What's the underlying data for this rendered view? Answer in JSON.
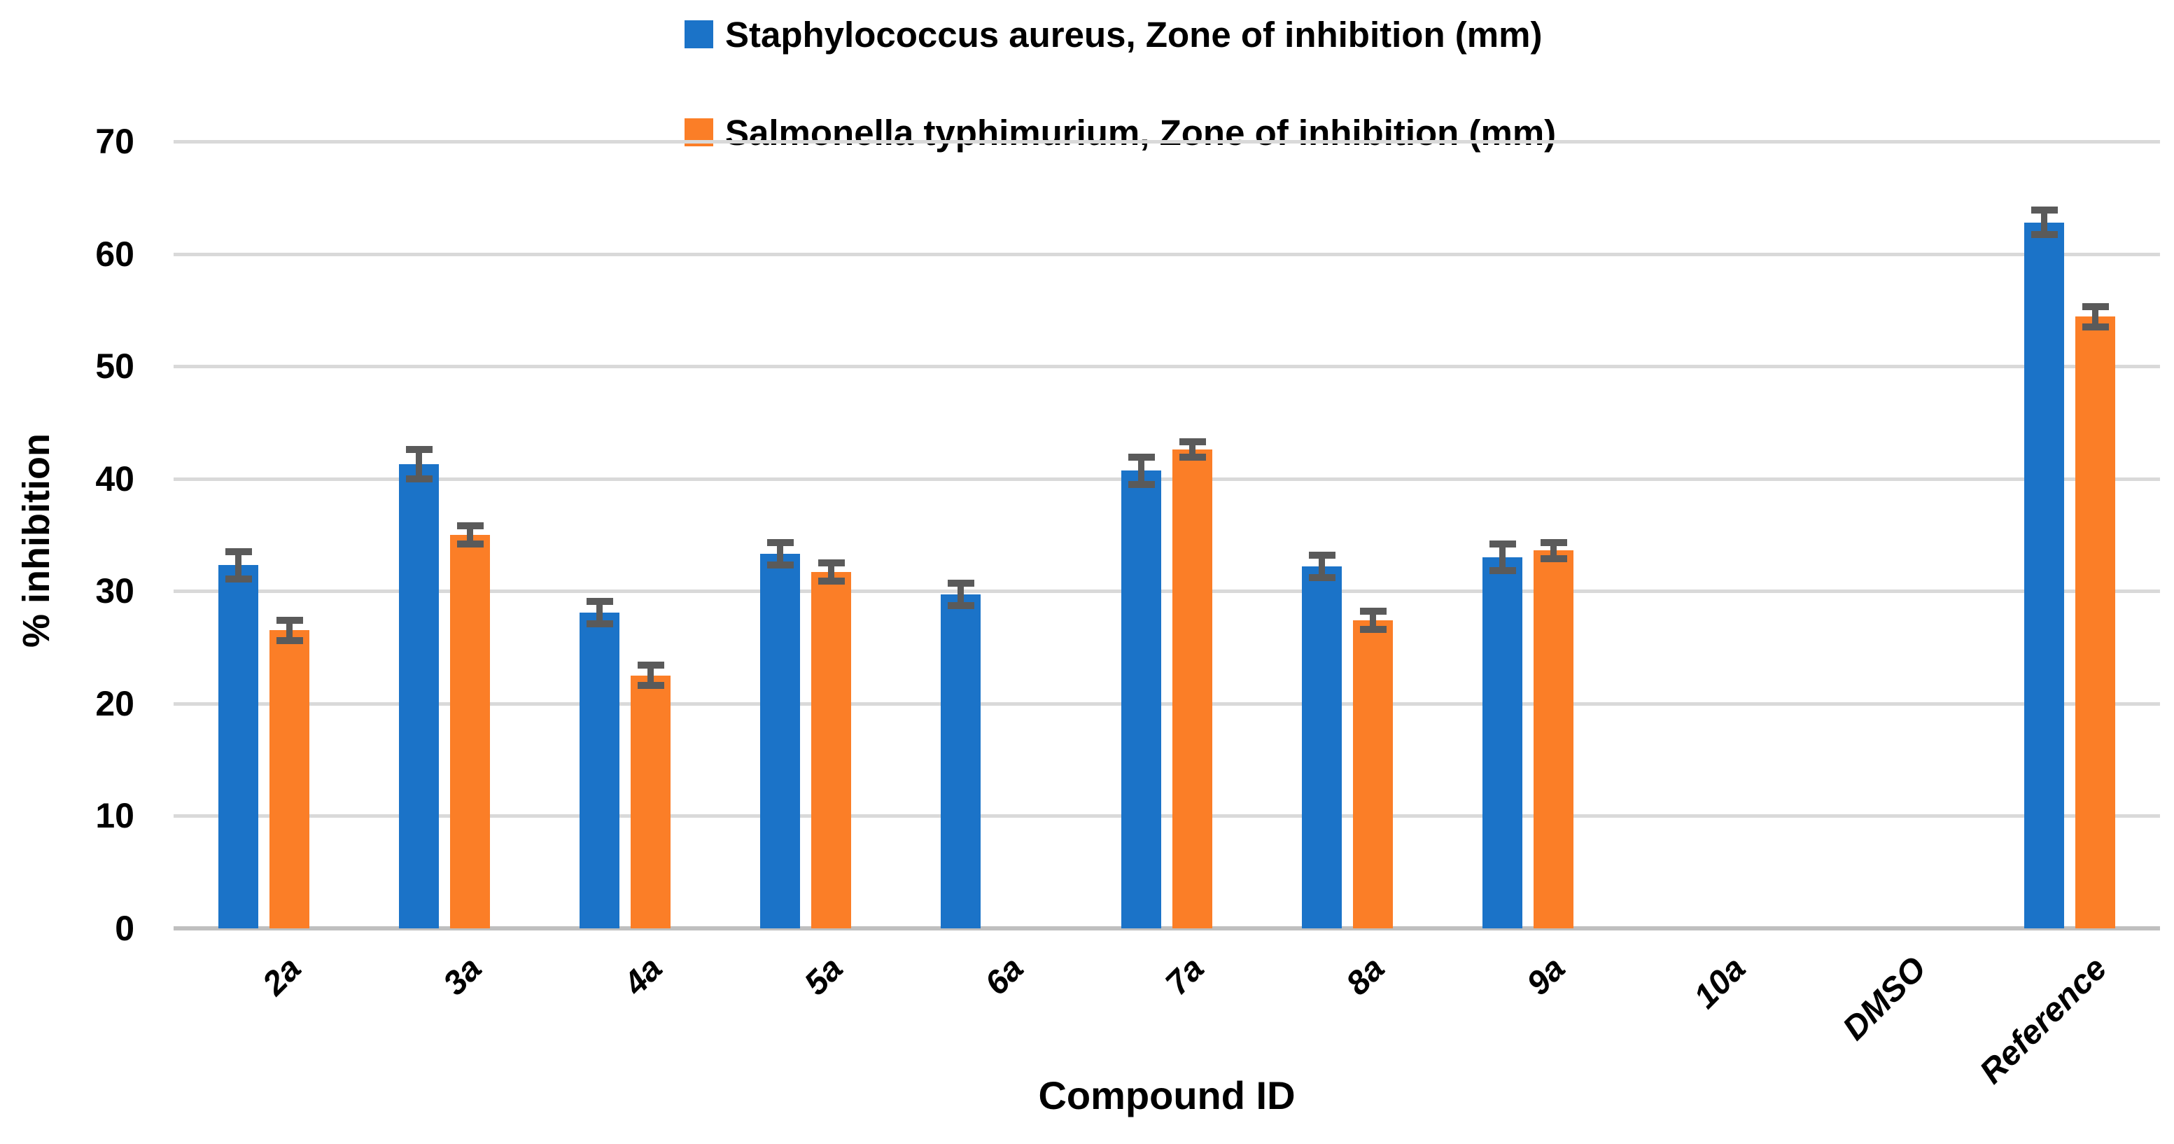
{
  "chart_data": {
    "type": "bar",
    "title": "",
    "xlabel": "Compound ID",
    "ylabel": "% inhibition",
    "ylim": [
      0,
      70
    ],
    "yticks": [
      0,
      10,
      20,
      30,
      40,
      50,
      60,
      70
    ],
    "grid": true,
    "legend_position": "top-center",
    "categories": [
      "2a",
      "3a",
      "4a",
      "5a",
      "6a",
      "7a",
      "8a",
      "9a",
      "10a",
      "DMSO",
      "Reference"
    ],
    "series": [
      {
        "name": "Staphylococcus aureus, Zone of inhibition (mm)",
        "color": "#1B73C8",
        "values": [
          32.3,
          41.3,
          28.1,
          33.3,
          29.7,
          40.7,
          32.2,
          33.0,
          null,
          null,
          62.8
        ],
        "errors": [
          1.2,
          1.3,
          1.0,
          1.0,
          1.0,
          1.2,
          1.0,
          1.2,
          null,
          null,
          1.1
        ]
      },
      {
        "name": "Salmonella typhimurium, Zone of inhibition (mm)",
        "color": "#FB7E27",
        "values": [
          26.5,
          35.0,
          22.5,
          31.7,
          null,
          42.6,
          27.4,
          33.6,
          null,
          null,
          54.4
        ],
        "errors": [
          0.9,
          0.8,
          0.9,
          0.8,
          null,
          0.7,
          0.8,
          0.7,
          null,
          null,
          0.9
        ]
      }
    ],
    "error_bar_color": "#5A5A5A",
    "gridline_color": "#D9D9D9",
    "axis_line_color": "#BFBFBF",
    "background_color": "#FFFFFF",
    "text_color": "#000000"
  }
}
